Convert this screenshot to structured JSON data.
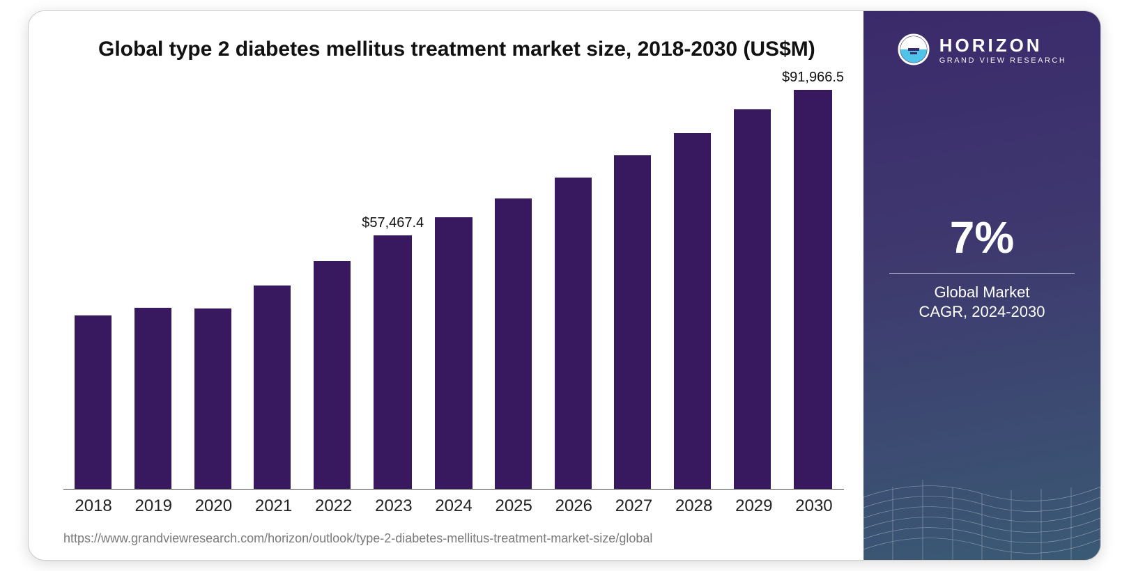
{
  "chart": {
    "type": "bar",
    "title": "Global type 2 diabetes mellitus treatment market size, 2018-2030 (US$M)",
    "categories": [
      "2018",
      "2019",
      "2020",
      "2021",
      "2022",
      "2023",
      "2024",
      "2025",
      "2026",
      "2027",
      "2028",
      "2029",
      "2030"
    ],
    "values": [
      39200,
      41000,
      40800,
      46000,
      51500,
      57467.4,
      61500,
      65800,
      70500,
      75500,
      80500,
      86000,
      91966.5
    ],
    "value_labels": {
      "5": "$57,467.4",
      "12": "$91,966.5"
    },
    "bar_color": "#38195f",
    "ymax": 95000,
    "ymin": 0,
    "bar_width_ratio": 0.62,
    "background_color": "#ffffff",
    "xlabel_fontsize": 24,
    "value_label_fontsize": 20,
    "title_fontsize": 30,
    "axis_line_color": "#444444"
  },
  "source_url": "https://www.grandviewresearch.com/horizon/outlook/type-2-diabetes-mellitus-treatment-market-size/global",
  "side": {
    "brand_name": "HORIZON",
    "brand_sub": "GRAND VIEW RESEARCH",
    "cagr_value": "7%",
    "cagr_label1": "Global Market",
    "cagr_label2": "CAGR, 2024-2030",
    "bg_gradient_from": "#3b2a6b",
    "bg_gradient_to": "#3a5a74",
    "logo_top_color": "#ffffff",
    "logo_bottom_color": "#4fc3e8"
  }
}
